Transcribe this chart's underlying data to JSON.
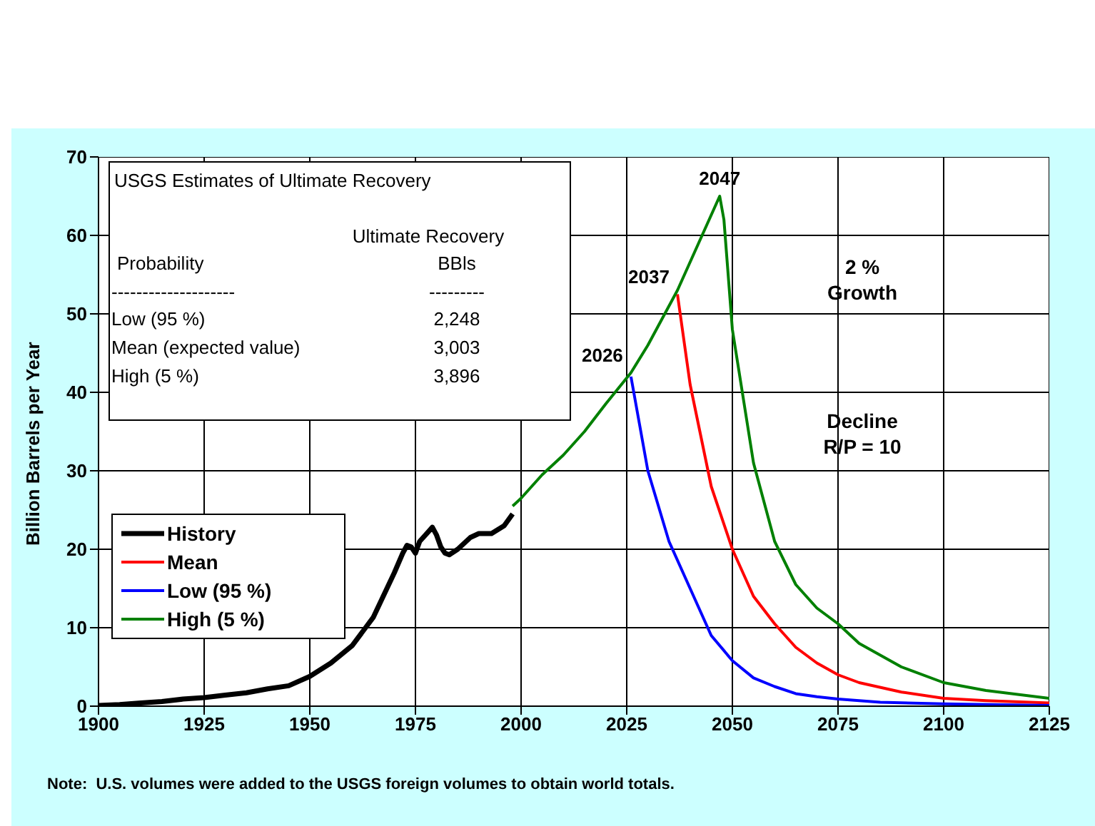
{
  "chart_data": {
    "type": "line",
    "ylabel": "Billion Barrels per Year",
    "xlim": [
      1900,
      2125
    ],
    "xticks": [
      1900,
      1925,
      1950,
      1975,
      2000,
      2025,
      2050,
      2075,
      2100,
      2125
    ],
    "ylim": [
      0,
      70
    ],
    "yticks": [
      0,
      10,
      20,
      30,
      40,
      50,
      60,
      70
    ],
    "grid": true,
    "legend": "bottom left",
    "marker": "none",
    "line_style": "solid",
    "series": [
      {
        "name": "History",
        "color": "#000000",
        "x": [
          1900,
          1905,
          1910,
          1915,
          1920,
          1925,
          1930,
          1935,
          1940,
          1945,
          1950,
          1955,
          1960,
          1965,
          1970,
          1972,
          1973,
          1974,
          1975,
          1976,
          1978,
          1979,
          1980,
          1981,
          1982,
          1983,
          1985,
          1988,
          1990,
          1993,
          1996,
          1998
        ],
        "values": [
          0.1,
          0.2,
          0.4,
          0.6,
          0.9,
          1.1,
          1.4,
          1.7,
          2.2,
          2.6,
          3.8,
          5.5,
          7.7,
          11.3,
          17,
          19.5,
          20.5,
          20.3,
          19.5,
          21,
          22.2,
          22.8,
          21.8,
          20.3,
          19.5,
          19.3,
          20,
          21.5,
          22,
          22,
          23,
          24.5
        ]
      },
      {
        "name": "Mean",
        "color": "#ff0000",
        "x": [
          2037,
          2040,
          2045,
          2050,
          2055,
          2060,
          2065,
          2070,
          2075,
          2080,
          2090,
          2100,
          2110,
          2125
        ],
        "values": [
          52.5,
          41,
          28,
          20,
          14,
          10.5,
          7.5,
          5.5,
          4,
          3,
          1.8,
          1,
          0.7,
          0.4
        ]
      },
      {
        "name": "Low (95 %)",
        "color": "#0000ff",
        "x": [
          2026,
          2028,
          2030,
          2035,
          2040,
          2045,
          2050,
          2055,
          2060,
          2065,
          2070,
          2075,
          2085,
          2100,
          2125
        ],
        "values": [
          42,
          36,
          30,
          21,
          15,
          9,
          5.8,
          3.6,
          2.5,
          1.6,
          1.2,
          0.9,
          0.5,
          0.3,
          0.1
        ]
      },
      {
        "name": "High (5 %)",
        "color": "#008000",
        "x": [
          1998,
          2000,
          2005,
          2010,
          2015,
          2020,
          2026,
          2030,
          2037,
          2042,
          2047,
          2048,
          2050,
          2055,
          2060,
          2065,
          2070,
          2075,
          2080,
          2090,
          2100,
          2110,
          2125
        ],
        "values": [
          25.5,
          26.5,
          29.5,
          32,
          35,
          38.5,
          42.5,
          46,
          53,
          59,
          65,
          62,
          48,
          31,
          21,
          15.5,
          12.5,
          10.5,
          8,
          5,
          3,
          2,
          1
        ]
      }
    ],
    "annotations": [
      "USGS Estimates of Ultimate Recovery",
      "Ultimate Recovery",
      "BBls",
      "Probability",
      "--------------------",
      "---------",
      "Low (95 %)",
      "2,248",
      "Mean (expected value)",
      "3,003",
      "High (5 %)",
      "3,896",
      "2 % Growth",
      "Decline R/P = 10",
      "Note:  U.S. volumes were added to the USGS foreign volumes to obtain world totals.",
      {
        "text": "2026",
        "x": 2026,
        "y": 42.5
      },
      {
        "text": "2037",
        "x": 2037,
        "y": 52.5
      },
      {
        "text": "2047",
        "x": 2047,
        "y": 65
      }
    ]
  }
}
